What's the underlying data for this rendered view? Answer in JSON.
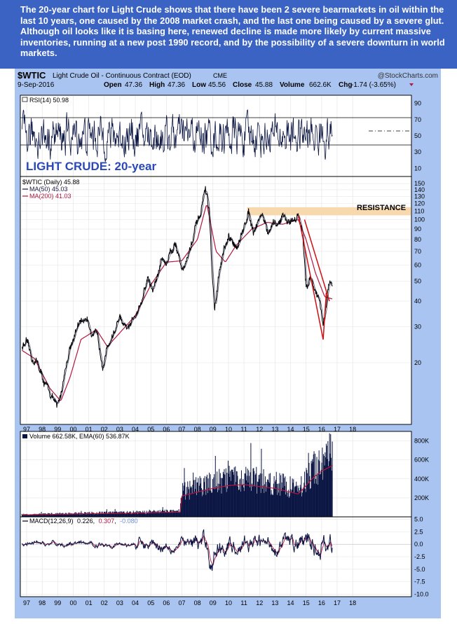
{
  "caption": "The 20-year chart for Light Crude shows that there have been 2 severe bearmarkets in oil within the last 10 years, one caused by the 2008 market crash, and the last one being caused by a severe glut. Although oil looks like it is basing here, renewed decline is made more likely by current massive inventories, running at a new post 1990 record, and by the possibility of a severe downturn in world markets.",
  "header": {
    "symbol": "$WTIC",
    "name": "Light Crude Oil - Continuous Contract (EOD)",
    "exchange": "CME",
    "watermark": "@StockCharts.com",
    "date": "9-Sep-2016",
    "quote": {
      "open_label": "Open",
      "open": "47.36",
      "high_label": "High",
      "high": "47.36",
      "low_label": "Low",
      "low": "45.56",
      "close_label": "Close",
      "close": "45.88",
      "volume_label": "Volume",
      "volume": "662.6K",
      "chg_label": "Chg",
      "chg": "-1.74 (-3.65%)"
    }
  },
  "colors": {
    "caption_bg": "#3b63c4",
    "panel_bg": "#a9c4f0",
    "price_line": "#000000",
    "ma50": "#1a1a40",
    "ma200": "#b5163f",
    "resistance_band": "#f7d9ad",
    "downtrend": "#d01010",
    "title": "#2a48b8",
    "volume": "#0a1442"
  },
  "chart_data": [
    {
      "panel": "rsi",
      "type": "line",
      "legend": "RSI(14) 50.98",
      "y_ticks": [
        10,
        30,
        50,
        70,
        90
      ],
      "ylim": [
        0,
        100
      ],
      "overbought": 70,
      "oversold": 30,
      "last": 50.98
    },
    {
      "panel": "price",
      "type": "line",
      "title": "LIGHT CRUDE: 20-year",
      "legend": [
        "$WTIC (Daily) 45.88",
        "MA(50) 45.03",
        "MA(200) 41.03"
      ],
      "scale": "log",
      "ylim": [
        10,
        155
      ],
      "y_ticks": [
        20,
        30,
        40,
        50,
        60,
        70,
        80,
        90,
        100,
        110,
        120,
        130,
        140,
        150
      ],
      "x_ticks": [
        "97",
        "98",
        "99",
        "00",
        "01",
        "02",
        "03",
        "04",
        "05",
        "06",
        "07",
        "08",
        "09",
        "10",
        "11",
        "12",
        "13",
        "14",
        "15",
        "16",
        "17",
        "18"
      ],
      "series": [
        {
          "name": "$WTIC",
          "x": [
            1996.7,
            1997.0,
            1997.3,
            1997.7,
            1998.0,
            1998.3,
            1998.6,
            1998.95,
            1999.2,
            1999.5,
            1999.8,
            2000.2,
            2000.6,
            2000.9,
            2001.2,
            2001.5,
            2001.9,
            2002.3,
            2002.7,
            2003.0,
            2003.3,
            2003.7,
            2004.0,
            2004.4,
            2004.8,
            2005.1,
            2005.4,
            2005.7,
            2006.0,
            2006.3,
            2006.6,
            2007.0,
            2007.3,
            2007.6,
            2007.9,
            2008.2,
            2008.5,
            2008.75,
            2008.95,
            2009.1,
            2009.4,
            2009.7,
            2010.0,
            2010.4,
            2010.7,
            2011.0,
            2011.3,
            2011.6,
            2011.9,
            2012.2,
            2012.5,
            2012.8,
            2013.2,
            2013.5,
            2013.8,
            2014.1,
            2014.5,
            2014.8,
            2015.0,
            2015.3,
            2015.6,
            2015.9,
            2016.1,
            2016.3,
            2016.5,
            2016.69
          ],
          "values": [
            24,
            25,
            21,
            20,
            17,
            15,
            14,
            12,
            14,
            19,
            24,
            29,
            32,
            33,
            28,
            27,
            20,
            25,
            29,
            33,
            29,
            30,
            35,
            40,
            52,
            45,
            52,
            65,
            61,
            72,
            76,
            58,
            63,
            75,
            92,
            105,
            145,
            110,
            55,
            36,
            55,
            70,
            80,
            75,
            78,
            90,
            112,
            88,
            99,
            108,
            85,
            92,
            95,
            105,
            98,
            100,
            105,
            80,
            48,
            52,
            45,
            38,
            30,
            38,
            50,
            46
          ]
        },
        {
          "name": "MA(200)",
          "x": [
            1996.7,
            1997.5,
            1998.5,
            1999.2,
            1999.8,
            2000.5,
            2001.5,
            2002.2,
            2003.0,
            2004.0,
            2005.0,
            2006.0,
            2007.0,
            2008.0,
            2008.6,
            2009.2,
            2009.8,
            2010.5,
            2011.5,
            2012.5,
            2013.5,
            2014.5,
            2015.0,
            2015.6,
            2016.2,
            2016.69
          ],
          "values": [
            23,
            21,
            15,
            13,
            17,
            26,
            29,
            24,
            28,
            34,
            48,
            62,
            63,
            80,
            120,
            70,
            62,
            75,
            90,
            97,
            95,
            100,
            80,
            55,
            42,
            41
          ]
        }
      ],
      "annotations": [
        {
          "text": "RESISTANCE",
          "type": "band",
          "y_range": [
            105,
            115
          ],
          "x_range": [
            2011.2,
            2017.2
          ]
        },
        {
          "type": "downtrend-lines",
          "from": [
            2014.5,
            105
          ],
          "to": [
            2016.1,
            26
          ]
        }
      ]
    },
    {
      "panel": "volume",
      "type": "bar",
      "legend": "Volume 662.58K, EMA(60) 536.87K",
      "y_ticks": [
        "200K",
        "400K",
        "600K",
        "800K"
      ],
      "ylim": [
        0,
        900000
      ],
      "x": [
        1996.7,
        2000,
        2004,
        2006.9,
        2007.0,
        2008.0,
        2009.0,
        2010.0,
        2011.0,
        2012.0,
        2013.0,
        2014.0,
        2014.5,
        2015.0,
        2015.5,
        2016.0,
        2016.69
      ],
      "values": [
        20000,
        30000,
        40000,
        50000,
        220000,
        260000,
        300000,
        330000,
        340000,
        320000,
        300000,
        260000,
        240000,
        330000,
        420000,
        480000,
        540000
      ]
    },
    {
      "panel": "macd",
      "type": "line",
      "legend": [
        "MACD(12,26,9)",
        "0.226",
        "0.307",
        "-0.080"
      ],
      "y_ticks": [
        "5.0",
        "2.5",
        "0.0",
        "-2.5",
        "-5.0",
        "-7.5",
        "-10.0"
      ],
      "ylim": [
        -10.5,
        5.5
      ]
    }
  ]
}
